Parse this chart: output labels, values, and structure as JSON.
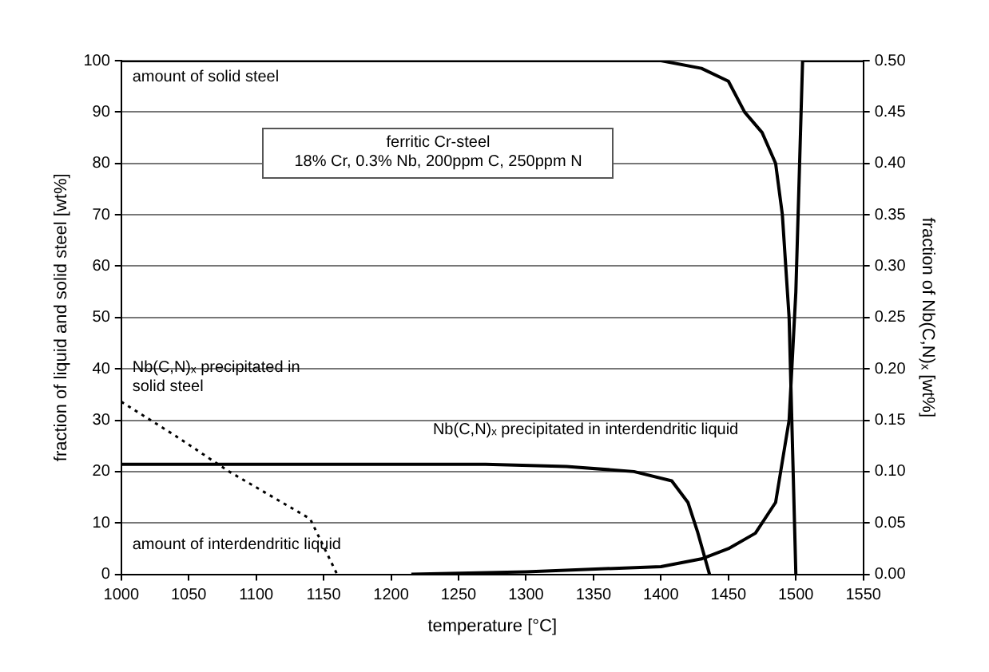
{
  "chart_data": {
    "type": "line",
    "xlabel": "temperature [°C]",
    "ylabel": "fraction of liquid and solid steel [wt%]",
    "y2label": "fraction of Nb(C,N)ₓ [wt%]",
    "xlim": [
      1000,
      1550
    ],
    "xticks": [
      1000,
      1050,
      1100,
      1150,
      1200,
      1250,
      1300,
      1350,
      1400,
      1450,
      1500,
      1550
    ],
    "ylim": [
      0,
      100
    ],
    "yticks": [
      0,
      10,
      20,
      30,
      40,
      50,
      60,
      70,
      80,
      90,
      100
    ],
    "y2lim": [
      0,
      0.5
    ],
    "y2ticks": [
      {
        "value": 0,
        "label": "0.00"
      },
      0.05,
      {
        "value": 0.1,
        "label": "0.10"
      },
      0.15,
      {
        "value": 0.2,
        "label": "0.20"
      },
      0.25,
      {
        "value": 0.3,
        "label": "0.30"
      },
      0.35,
      {
        "value": 0.4,
        "label": "0.40"
      },
      0.45,
      {
        "value": 0.5,
        "label": "0.50"
      }
    ],
    "grid": "y",
    "legend": false,
    "marker": "none",
    "series": [
      {
        "color": "#000000",
        "x": [
          1000,
          1400,
          1430,
          1450,
          1462,
          1475,
          1485,
          1490,
          1495,
          1500
        ],
        "values": [
          100,
          100,
          98.5,
          96,
          90,
          86,
          80,
          70,
          50,
          0
        ]
      },
      {
        "color": "#000000",
        "x": [
          1215,
          1300,
          1400,
          1430,
          1450,
          1470,
          1485,
          1495,
          1500,
          1505,
          1550
        ],
        "values": [
          0,
          0.5,
          1.5,
          3,
          5,
          8,
          14,
          30,
          55,
          100,
          100
        ]
      },
      {
        "color": "#000000",
        "axis": "y2",
        "x": [
          1000,
          1270,
          1330,
          1380,
          1408,
          1420,
          1427,
          1436
        ],
        "values": [
          0.107,
          0.107,
          0.105,
          0.1,
          0.091,
          0.07,
          0.042,
          0
        ]
      },
      {
        "color": "#000000",
        "axis": "y2",
        "line_style": "dotted",
        "x": [
          1000,
          1040,
          1080,
          1110,
          1140,
          1160
        ],
        "values": [
          0.168,
          0.135,
          0.1,
          0.077,
          0.054,
          0
        ]
      }
    ],
    "annotations": [
      "amount of solid steel",
      "amount of interdendritic liquid",
      "Nb(C,N)ₓ precipitated in solid steel",
      "Nb(C,N)ₓ precipitated in interdendritic liquid",
      "ferritic Cr-steel",
      "18% Cr, 0.3% Nb, 200ppm C, 250ppm N"
    ]
  }
}
